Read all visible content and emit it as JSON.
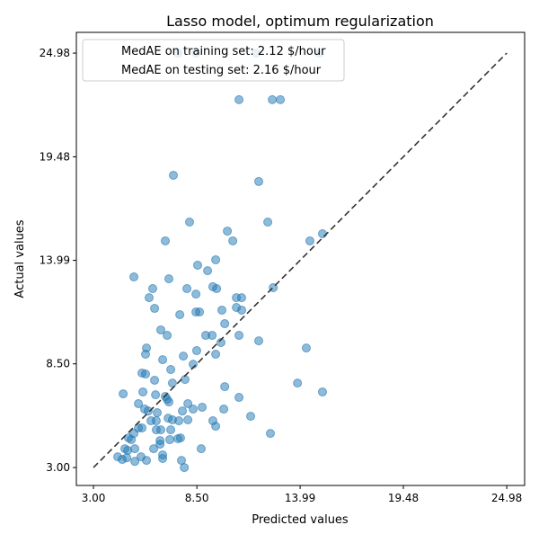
{
  "chart_data": {
    "type": "scatter",
    "title": "Lasso model, optimum regularization",
    "xlabel": "Predicted values",
    "ylabel": "Actual values",
    "xlim": [
      2.09,
      25.93
    ],
    "ylim": [
      2.05,
      26.08
    ],
    "xticks": [
      "3.00",
      "8.50",
      "13.99",
      "19.48",
      "24.98"
    ],
    "yticks": [
      "3.00",
      "8.50",
      "13.99",
      "19.48",
      "24.98"
    ],
    "tick_values": [
      3.0,
      8.5,
      13.99,
      19.48,
      24.98
    ],
    "grid": false,
    "legend": {
      "placement": "upper-left",
      "entries": [
        "MedAE on training set: 2.12 $/hour",
        "MedAE on testing set: 2.16 $/hour"
      ]
    },
    "reference_line": {
      "style": "dashed",
      "color": "#333333",
      "from": [
        3.0,
        3.0
      ],
      "to": [
        24.98,
        24.98
      ]
    },
    "point_color": "#1f77b4",
    "points": [
      [
        10.74,
        22.51
      ],
      [
        12.51,
        22.51
      ],
      [
        12.94,
        22.51
      ],
      [
        7.25,
        18.5
      ],
      [
        11.79,
        18.17
      ],
      [
        8.11,
        16.02
      ],
      [
        12.27,
        16.02
      ],
      [
        10.12,
        15.54
      ],
      [
        6.82,
        15.02
      ],
      [
        10.41,
        15.02
      ],
      [
        14.51,
        15.02
      ],
      [
        15.18,
        15.4
      ],
      [
        9.5,
        14.02
      ],
      [
        8.54,
        13.73
      ],
      [
        9.07,
        13.44
      ],
      [
        5.15,
        13.11
      ],
      [
        6.15,
        12.49
      ],
      [
        7.01,
        13.01
      ],
      [
        7.97,
        12.49
      ],
      [
        9.35,
        12.59
      ],
      [
        9.55,
        12.49
      ],
      [
        8.45,
        12.2
      ],
      [
        5.96,
        12.01
      ],
      [
        10.6,
        12.01
      ],
      [
        10.88,
        12.01
      ],
      [
        12.56,
        12.54
      ],
      [
        6.25,
        11.44
      ],
      [
        7.59,
        11.11
      ],
      [
        8.45,
        11.25
      ],
      [
        8.64,
        11.25
      ],
      [
        9.83,
        11.35
      ],
      [
        10.6,
        11.49
      ],
      [
        10.88,
        11.35
      ],
      [
        6.58,
        10.3
      ],
      [
        9.98,
        10.63
      ],
      [
        6.92,
        10.01
      ],
      [
        8.97,
        10.01
      ],
      [
        9.31,
        10.01
      ],
      [
        10.74,
        10.01
      ],
      [
        11.79,
        9.72
      ],
      [
        5.82,
        9.34
      ],
      [
        8.49,
        9.2
      ],
      [
        9.78,
        9.63
      ],
      [
        14.32,
        9.34
      ],
      [
        5.77,
        9.01
      ],
      [
        7.78,
        8.91
      ],
      [
        9.5,
        9.01
      ],
      [
        6.68,
        8.72
      ],
      [
        8.3,
        8.48
      ],
      [
        5.58,
        8.01
      ],
      [
        5.77,
        7.96
      ],
      [
        7.11,
        8.2
      ],
      [
        6.25,
        7.63
      ],
      [
        7.87,
        7.67
      ],
      [
        9.98,
        7.29
      ],
      [
        7.2,
        7.48
      ],
      [
        13.85,
        7.48
      ],
      [
        15.18,
        7.01
      ],
      [
        4.58,
        6.91
      ],
      [
        5.63,
        7.01
      ],
      [
        6.3,
        6.86
      ],
      [
        6.82,
        6.77
      ],
      [
        6.92,
        6.62
      ],
      [
        8.02,
        6.39
      ],
      [
        8.78,
        6.2
      ],
      [
        9.93,
        6.1
      ],
      [
        10.74,
        6.72
      ],
      [
        7.01,
        6.48
      ],
      [
        5.39,
        6.39
      ],
      [
        5.72,
        6.1
      ],
      [
        5.91,
        6.0
      ],
      [
        6.39,
        5.91
      ],
      [
        7.73,
        6.0
      ],
      [
        8.3,
        6.1
      ],
      [
        11.36,
        5.72
      ],
      [
        6.97,
        5.62
      ],
      [
        6.06,
        5.48
      ],
      [
        6.34,
        5.48
      ],
      [
        7.2,
        5.53
      ],
      [
        7.54,
        5.48
      ],
      [
        8.02,
        5.53
      ],
      [
        9.35,
        5.48
      ],
      [
        9.5,
        5.19
      ],
      [
        5.39,
        5.1
      ],
      [
        5.58,
        5.1
      ],
      [
        6.34,
        5.0
      ],
      [
        6.58,
        5.0
      ],
      [
        7.11,
        5.0
      ],
      [
        7.63,
        4.57
      ],
      [
        7.49,
        4.53
      ],
      [
        7.06,
        4.48
      ],
      [
        6.54,
        4.43
      ],
      [
        6.54,
        4.24
      ],
      [
        4.86,
        4.57
      ],
      [
        5.01,
        4.48
      ],
      [
        5.15,
        4.81
      ],
      [
        6.2,
        4.0
      ],
      [
        8.73,
        4.0
      ],
      [
        12.41,
        4.81
      ],
      [
        4.67,
        4.0
      ],
      [
        4.82,
        3.91
      ],
      [
        5.2,
        4.0
      ],
      [
        4.29,
        3.57
      ],
      [
        4.53,
        3.43
      ],
      [
        4.77,
        3.52
      ],
      [
        5.2,
        3.33
      ],
      [
        5.53,
        3.57
      ],
      [
        5.82,
        3.38
      ],
      [
        6.68,
        3.67
      ],
      [
        6.68,
        3.48
      ],
      [
        7.68,
        3.38
      ],
      [
        7.83,
        3.0
      ],
      [
        7.49,
        24.98
      ],
      [
        8.45,
        24.98
      ],
      [
        11.65,
        24.98
      ],
      [
        15.0,
        24.98
      ]
    ]
  }
}
